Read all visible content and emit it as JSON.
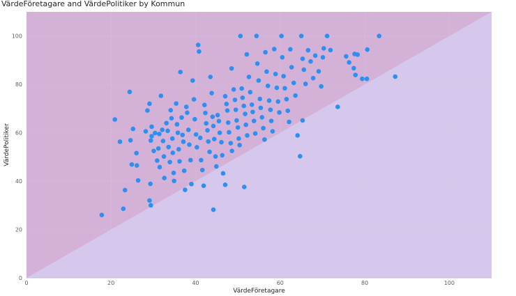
{
  "chart_data": {
    "type": "scatter",
    "title": "VärdeFöretagare and VärdePolitiker by Kommun",
    "xlabel": "VärdeFöretagare",
    "ylabel": "VärdePolitiker",
    "xlim": [
      0,
      110
    ],
    "ylim": [
      0,
      110
    ],
    "x_ticks": [
      0,
      20,
      40,
      60,
      80,
      100
    ],
    "y_ticks": [
      0,
      20,
      40,
      60,
      80,
      100
    ],
    "grid": true,
    "reference_line": {
      "from": [
        0,
        0
      ],
      "to": [
        110,
        110
      ]
    },
    "colors": {
      "points": "#2f8ff0",
      "region_above": "#d4b2d8",
      "region_below": "#d5c8ec",
      "grid": "#d9c6e0"
    },
    "series": [
      {
        "points": [
          [
            17.8,
            26
          ],
          [
            20.9,
            65.5
          ],
          [
            22.1,
            56.3
          ],
          [
            22.9,
            28.6
          ],
          [
            23.3,
            36.3
          ],
          [
            24.4,
            76.9
          ],
          [
            24.6,
            56.9
          ],
          [
            24.9,
            46.9
          ],
          [
            25.2,
            61.6
          ],
          [
            26,
            51.6
          ],
          [
            26.4,
            40.3
          ],
          [
            26.1,
            46.5
          ],
          [
            28.2,
            60.6
          ],
          [
            28.6,
            69.2
          ],
          [
            29.1,
            72
          ],
          [
            29.4,
            56.8
          ],
          [
            29.3,
            38.9
          ],
          [
            29.1,
            32
          ],
          [
            29.4,
            30
          ],
          [
            29.6,
            62.5
          ],
          [
            29.6,
            58.6
          ],
          [
            30.1,
            52.5
          ],
          [
            30.4,
            59.9
          ],
          [
            30.9,
            48.5
          ],
          [
            31.4,
            59.5
          ],
          [
            31.2,
            53.5
          ],
          [
            31.5,
            45.8
          ],
          [
            31.8,
            75.3
          ],
          [
            32.1,
            61.2
          ],
          [
            32.3,
            56.6
          ],
          [
            32.5,
            50.2
          ],
          [
            32.6,
            41.3
          ],
          [
            33.1,
            64
          ],
          [
            33.4,
            60.8
          ],
          [
            33.6,
            54.1
          ],
          [
            33.9,
            47.9
          ],
          [
            34.1,
            69.3
          ],
          [
            34.3,
            66
          ],
          [
            34.5,
            57.6
          ],
          [
            34.6,
            51.7
          ],
          [
            34.8,
            43.4
          ],
          [
            34.9,
            40.1
          ],
          [
            35.4,
            72.1
          ],
          [
            35.6,
            63.5
          ],
          [
            35.8,
            60
          ],
          [
            36,
            53.2
          ],
          [
            36.2,
            48.2
          ],
          [
            36.4,
            85.1
          ],
          [
            36.7,
            66.3
          ],
          [
            36.9,
            59.1
          ],
          [
            37.1,
            56.3
          ],
          [
            37.3,
            44.3
          ],
          [
            37.5,
            36.4
          ],
          [
            37.8,
            70.7
          ],
          [
            38,
            68.3
          ],
          [
            38.3,
            61.2
          ],
          [
            38.5,
            55.1
          ],
          [
            38.8,
            48.7
          ],
          [
            39,
            38.8
          ],
          [
            39.3,
            81.6
          ],
          [
            39.6,
            73.8
          ],
          [
            39.8,
            65.6
          ],
          [
            40.1,
            59.3
          ],
          [
            40.3,
            54
          ],
          [
            40.6,
            96.3
          ],
          [
            40.8,
            93.6
          ],
          [
            41.1,
            57.9
          ],
          [
            41.3,
            48.7
          ],
          [
            41.6,
            44.6
          ],
          [
            41.9,
            38.1
          ],
          [
            42.1,
            71.5
          ],
          [
            42.3,
            68.2
          ],
          [
            42.5,
            63.9
          ],
          [
            42.8,
            61
          ],
          [
            43,
            56.4
          ],
          [
            43.3,
            52.1
          ],
          [
            43.5,
            83.1
          ],
          [
            43.8,
            76.4
          ],
          [
            44,
            66.6
          ],
          [
            44.2,
            62.8
          ],
          [
            44.4,
            57.4
          ],
          [
            44.7,
            50.2
          ],
          [
            44.9,
            46.1
          ],
          [
            44.2,
            28.2
          ],
          [
            45.2,
            67.3
          ],
          [
            45.5,
            64.8
          ],
          [
            45.7,
            60
          ],
          [
            46.1,
            56.1
          ],
          [
            46.3,
            50.7
          ],
          [
            46.5,
            43.2
          ],
          [
            47,
            38.5
          ],
          [
            47,
            75.1
          ],
          [
            47.3,
            71.9
          ],
          [
            47.5,
            69.2
          ],
          [
            47.7,
            64.2
          ],
          [
            47.9,
            60.2
          ],
          [
            48.3,
            55.7
          ],
          [
            48.6,
            52.5
          ],
          [
            48.5,
            86.6
          ],
          [
            49,
            77.9
          ],
          [
            49.3,
            73.6
          ],
          [
            49.5,
            69.5
          ],
          [
            49.7,
            65.1
          ],
          [
            50,
            62.2
          ],
          [
            50.2,
            57.6
          ],
          [
            50.4,
            54.9
          ],
          [
            50.6,
            100
          ],
          [
            50.9,
            78.3
          ],
          [
            51.1,
            74.5
          ],
          [
            51.4,
            71.1
          ],
          [
            51.7,
            67.8
          ],
          [
            51.9,
            63.3
          ],
          [
            52.2,
            58.9
          ],
          [
            51.5,
            37.6
          ],
          [
            52.1,
            92.4
          ],
          [
            52.6,
            83.1
          ],
          [
            52.9,
            76.8
          ],
          [
            53.3,
            71.6
          ],
          [
            53.5,
            68.6
          ],
          [
            53.8,
            64.9
          ],
          [
            54.1,
            59.7
          ],
          [
            54.4,
            100
          ],
          [
            54.6,
            88.6
          ],
          [
            54.9,
            81.6
          ],
          [
            55.2,
            74
          ],
          [
            55.4,
            70.3
          ],
          [
            55.7,
            66.4
          ],
          [
            56,
            61.9
          ],
          [
            56.3,
            57.2
          ],
          [
            56.5,
            93.3
          ],
          [
            56.8,
            85.3
          ],
          [
            57.1,
            79.4
          ],
          [
            57.4,
            73.3
          ],
          [
            57.7,
            69.5
          ],
          [
            57.9,
            64.9
          ],
          [
            58.2,
            60.6
          ],
          [
            58.6,
            94.6
          ],
          [
            58.9,
            84.3
          ],
          [
            59.2,
            78.6
          ],
          [
            59.5,
            72.9
          ],
          [
            59.8,
            68.4
          ],
          [
            60.3,
            100
          ],
          [
            60.5,
            91.2
          ],
          [
            60.8,
            83.4
          ],
          [
            61.1,
            78.4
          ],
          [
            61.5,
            73.9
          ],
          [
            61.8,
            69.1
          ],
          [
            62.1,
            64.5
          ],
          [
            62.4,
            94.5
          ],
          [
            62.7,
            87.1
          ],
          [
            63.2,
            80.6
          ],
          [
            63.6,
            75.4
          ],
          [
            64.1,
            58.9
          ],
          [
            64.7,
            50.3
          ],
          [
            65,
            100
          ],
          [
            65.3,
            90.6
          ],
          [
            65.6,
            86.1
          ],
          [
            66,
            80.2
          ],
          [
            65.3,
            65.1
          ],
          [
            66.6,
            94.1
          ],
          [
            67.2,
            89.5
          ],
          [
            67.8,
            82.6
          ],
          [
            68.3,
            91.9
          ],
          [
            69.1,
            85.4
          ],
          [
            69.7,
            79.2
          ],
          [
            70.3,
            94.9
          ],
          [
            70.1,
            91.2
          ],
          [
            71.1,
            100
          ],
          [
            71.9,
            94.2
          ],
          [
            73.6,
            70.7
          ],
          [
            75.6,
            91.6
          ],
          [
            76.3,
            89.1
          ],
          [
            77.4,
            86.7
          ],
          [
            77.6,
            92.6
          ],
          [
            77.8,
            83.9
          ],
          [
            78.3,
            92.3
          ],
          [
            79.4,
            82.3
          ],
          [
            80.5,
            82.3
          ],
          [
            80.6,
            94.4
          ],
          [
            83.4,
            100
          ],
          [
            87.2,
            83.2
          ]
        ]
      }
    ]
  }
}
